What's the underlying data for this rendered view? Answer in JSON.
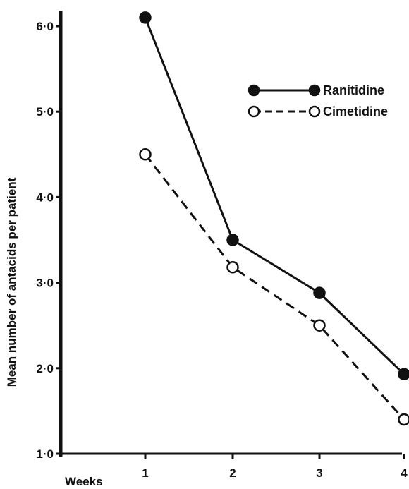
{
  "chart_data": {
    "type": "line",
    "title": "",
    "xlabel": "Weeks",
    "ylabel": "Mean number of antacids per patient",
    "x": [
      1,
      2,
      3,
      4
    ],
    "x_tick_labels": [
      "1",
      "2",
      "3",
      "4"
    ],
    "y_tick_labels": [
      "1·0",
      "2·0",
      "3·0",
      "4·0",
      "5·0",
      "6·0"
    ],
    "y_ticks": [
      1,
      2,
      3,
      4,
      5,
      6
    ],
    "ylim": [
      1,
      6.2
    ],
    "xlim": [
      0,
      4
    ],
    "grid": false,
    "legend_position": "top-right",
    "series": [
      {
        "name": "Ranitidine",
        "values": [
          6.1,
          3.5,
          2.88,
          1.93
        ],
        "marker": "filled-circle",
        "line_style": "solid",
        "color": "#111111"
      },
      {
        "name": "Cimetidine",
        "values": [
          4.5,
          3.18,
          2.5,
          1.4
        ],
        "marker": "open-circle",
        "line_style": "dashed",
        "color": "#111111"
      }
    ]
  }
}
